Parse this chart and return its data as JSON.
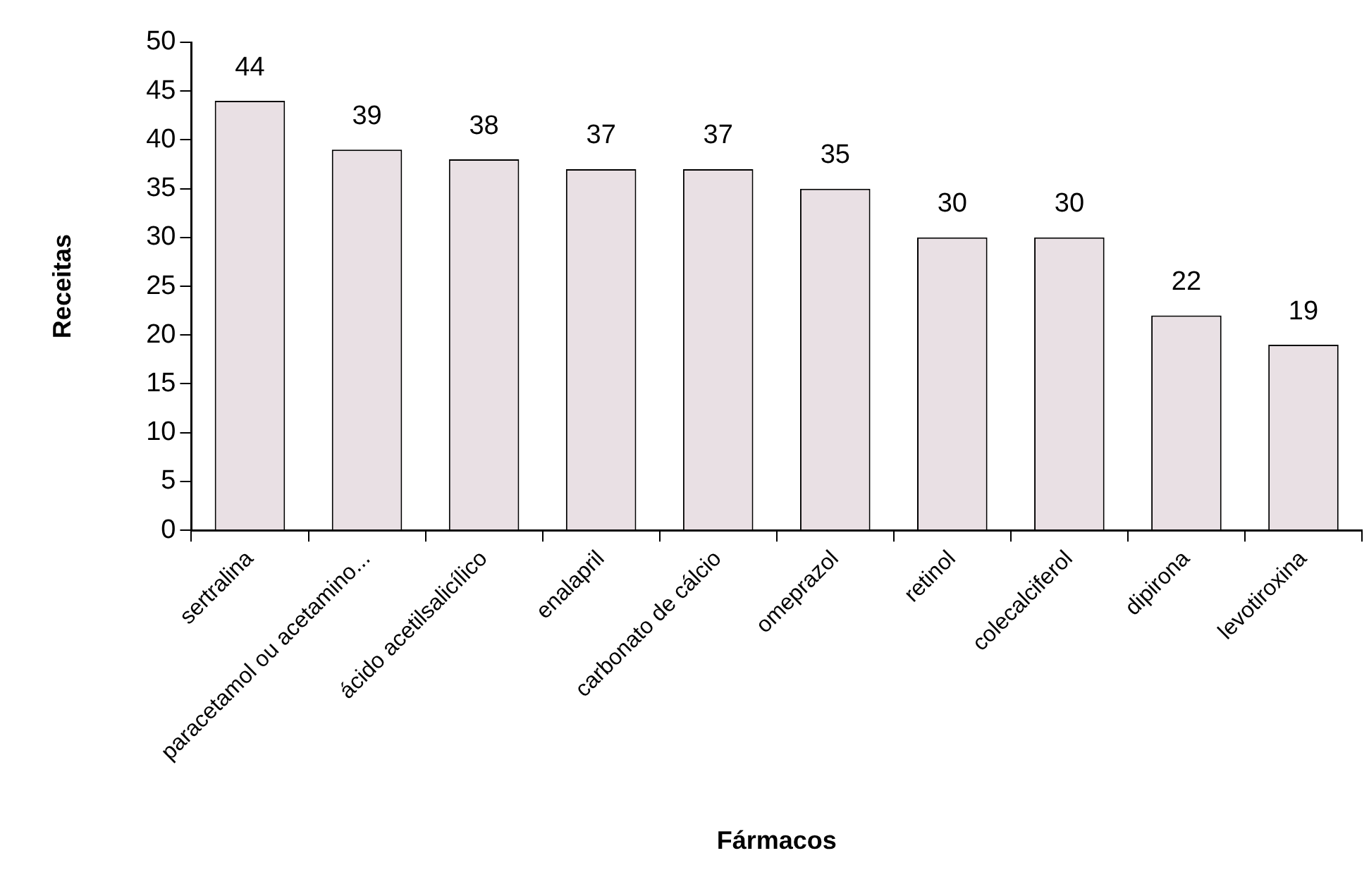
{
  "chart_data": {
    "type": "bar",
    "xlabel": "Fármacos",
    "ylabel": "Receitas",
    "categories": [
      "sertralina",
      "paracetamol ou acetamino...",
      "ácido acetilsalicílico",
      "enalapril",
      "carbonato de cálcio",
      "omeprazol",
      "retinol",
      "colecalciferol",
      "dipirona",
      "levotiroxina"
    ],
    "values": [
      44,
      39,
      38,
      37,
      37,
      35,
      30,
      30,
      22,
      19
    ],
    "color": "#e9e0e4",
    "ylim": [
      0,
      50
    ],
    "yticks": [
      0,
      5,
      10,
      15,
      20,
      25,
      30,
      35,
      40,
      45,
      50
    ],
    "grid": false,
    "legend": false,
    "data_labels": true
  }
}
